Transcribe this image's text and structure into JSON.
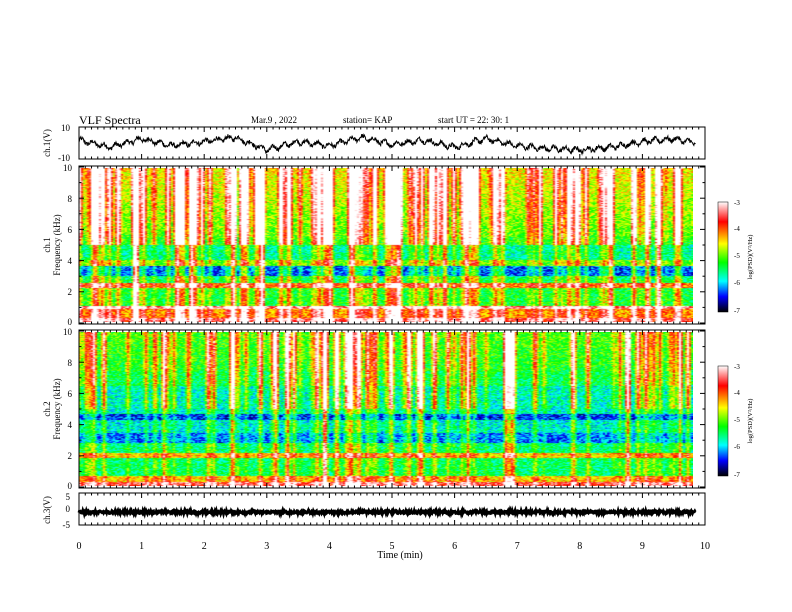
{
  "header": {
    "title": "VLF Spectra",
    "date": "Mar.9 , 2022",
    "station": "station= KAP",
    "start": "start UT = 22: 30: 1"
  },
  "colors": {
    "scale": [
      "#ffffff",
      "#ff0000",
      "#ffff00",
      "#00ff00",
      "#00ffff",
      "#0000ff",
      "#000000"
    ]
  },
  "chart_data": [
    {
      "type": "line",
      "panel": "ch1-waveform",
      "ylabel": "ch.1(V)",
      "ylim": [
        -10,
        10
      ],
      "yticks": [
        "10",
        "-10"
      ],
      "xlim": [
        0,
        10
      ],
      "x": [
        0,
        0.5,
        1,
        1.5,
        2,
        2.5,
        3,
        3.5,
        4,
        4.5,
        5,
        5.5,
        6,
        6.5,
        7,
        7.5,
        8,
        8.5,
        9,
        9.5,
        9.85
      ],
      "y": [
        2,
        -3,
        3,
        -2,
        1,
        4,
        -5,
        1,
        -2,
        4,
        -1,
        2,
        -3,
        3,
        -2,
        -4,
        -5,
        -3,
        1,
        3,
        0
      ]
    },
    {
      "type": "heatmap",
      "panel": "ch1-spectrogram",
      "ylabel": "Frequency (kHz)",
      "channel_label": "ch.1",
      "ylim": [
        0,
        10
      ],
      "yticks": [
        "0",
        "2",
        "4",
        "6",
        "8",
        "10"
      ],
      "xlim": [
        0,
        10
      ],
      "colorbar": {
        "label": "log(PSD)(V²/Hz)",
        "range": [
          -7,
          -3
        ],
        "ticks": [
          "-3",
          "-4",
          "-5",
          "-6",
          "-7"
        ]
      }
    },
    {
      "type": "heatmap",
      "panel": "ch2-spectrogram",
      "ylabel": "Frequency (kHz)",
      "channel_label": "ch.2",
      "ylim": [
        0,
        10
      ],
      "yticks": [
        "0",
        "2",
        "4",
        "6",
        "8",
        "10"
      ],
      "xlim": [
        0,
        10
      ],
      "colorbar": {
        "label": "log(PSD)(V²/Hz)",
        "range": [
          -7,
          -3
        ],
        "ticks": [
          "-3",
          "-4",
          "-5",
          "-6",
          "-7"
        ]
      }
    },
    {
      "type": "line",
      "panel": "ch3-waveform",
      "ylabel": "ch.3(V)",
      "ylim": [
        -5,
        5
      ],
      "yticks": [
        "5",
        "0",
        "-5"
      ],
      "xlim": [
        0,
        10
      ],
      "xlabel": "Time (min)",
      "xticks": [
        "0",
        "1",
        "2",
        "3",
        "4",
        "5",
        "6",
        "7",
        "8",
        "9",
        "10"
      ],
      "x": [
        0,
        9.85
      ],
      "y": [
        -1,
        -1
      ]
    }
  ]
}
